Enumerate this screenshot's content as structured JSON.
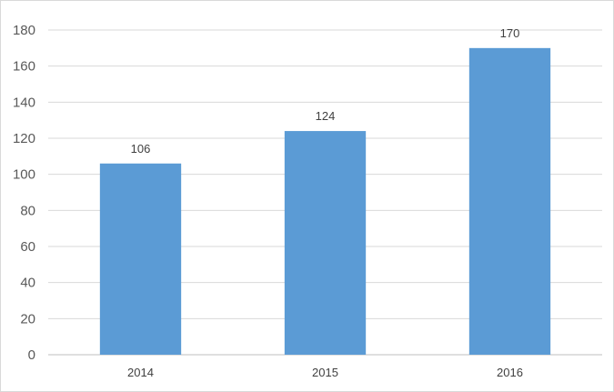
{
  "chart_data": {
    "type": "bar",
    "categories": [
      "2014",
      "2015",
      "2016"
    ],
    "values": [
      106,
      124,
      170
    ],
    "data_labels": [
      "106",
      "124",
      "170"
    ],
    "title": "",
    "xlabel": "",
    "ylabel": "",
    "ylim": [
      0,
      180
    ],
    "y_ticks": [
      "0",
      "20",
      "40",
      "60",
      "80",
      "100",
      "120",
      "140",
      "160",
      "180"
    ],
    "grid": true,
    "legend": "none",
    "colors": {
      "bar": "#5b9bd5",
      "grid": "#d9d9d9",
      "axis": "#bfbfbf"
    }
  }
}
